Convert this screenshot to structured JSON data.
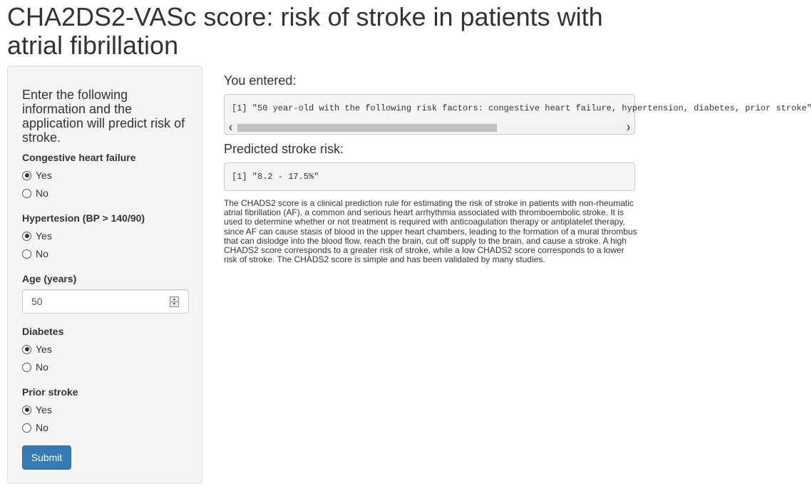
{
  "title": "CHA2DS2-VASc score: risk of stroke in patients with atrial fibrillation",
  "sidebar": {
    "intro": "Enter the following information and the application will predict risk of stroke.",
    "groups": [
      {
        "label": "Congestive heart failure",
        "options": [
          "Yes",
          "No"
        ],
        "selected": "Yes"
      },
      {
        "label": "Hypertesion (BP > 140/90)",
        "options": [
          "Yes",
          "No"
        ],
        "selected": "Yes"
      },
      {
        "label": "Diabetes",
        "options": [
          "Yes",
          "No"
        ],
        "selected": "Yes"
      },
      {
        "label": "Prior stroke",
        "options": [
          "Yes",
          "No"
        ],
        "selected": "Yes"
      }
    ],
    "age": {
      "label": "Age (years)",
      "value": "50"
    },
    "submit_label": "Submit"
  },
  "main": {
    "entered_title": "You entered:",
    "entered_output": "[1] \"50 year-old with the following risk factors: congestive heart failure, hypertension, diabetes, prior stroke\"",
    "risk_title": "Predicted stroke risk:",
    "risk_output": "[1] \"8.2 - 17.5%\"",
    "description": "The CHADS2 score is a clinical prediction rule for estimating the risk of stroke in patients with non-rheumatic atrial fibrillation (AF), a common and serious heart arrhythmia associated with thromboembolic stroke. It is used to determine whether or not treatment is required with anticoagulation therapy or antiplatelet therapy, since AF can cause stasis of blood in the upper heart chambers, leading to the formation of a mural thrombus that can dislodge into the blood flow, reach the brain, cut off supply to the brain, and cause a stroke. A high CHADS2 score corresponds to a greater risk of stroke, while a low CHADS2 score corresponds to a lower risk of stroke. The CHADS2 score is simple and has been validated by many studies."
  },
  "icons": {
    "scroll_left": "chevron-left-icon",
    "scroll_right": "chevron-right-icon",
    "spinner": "spinner-arrows-icon"
  }
}
